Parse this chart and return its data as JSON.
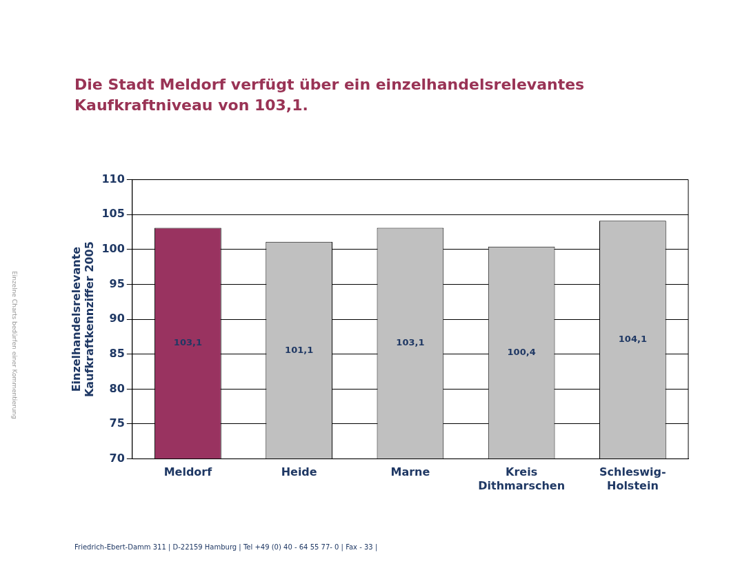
{
  "chart_data": {
    "type": "bar",
    "title": "Die Stadt Meldorf verfügt über ein einzelhandelsrelevantes Kaufkraftniveau von 103,1.",
    "ylabel": "Einzelhandelsrelevante\nKaufkraftkennziffer 2005",
    "categories": [
      "Meldorf",
      "Heide",
      "Marne",
      "Kreis Dithmarschen",
      "Schleswig-Holstein"
    ],
    "values": [
      103.1,
      101.1,
      103.1,
      100.4,
      104.1
    ],
    "value_labels": [
      "103,1",
      "101,1",
      "103,1",
      "100,4",
      "104,1"
    ],
    "colors": [
      "#993360",
      "#c0c0c0",
      "#c0c0c0",
      "#c0c0c0",
      "#c0c0c0"
    ],
    "ylim": [
      70,
      110
    ],
    "yticks": [
      70,
      75,
      80,
      85,
      90,
      95,
      100,
      105,
      110
    ],
    "grid": "y",
    "legend": false,
    "annotations": [
      "Einzelne Charts bedürfen einer Kommentierung",
      "Friedrich-Ebert-Damm 311 | D-22159 Hamburg | Tel +49 (0) 40 - 64 55 77- 0 | Fax - 33 |"
    ]
  }
}
